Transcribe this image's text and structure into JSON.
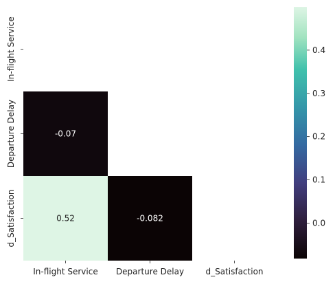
{
  "chart_data": {
    "type": "heatmap",
    "title": "",
    "xlabel": "",
    "ylabel": "",
    "mask": "upper-triangle-including-diagonal",
    "row_labels": [
      "In-flight Service",
      "Departure Delay",
      "d_Satisfaction"
    ],
    "col_labels": [
      "In-flight Service",
      "Departure Delay",
      "d_Satisfaction"
    ],
    "cells": [
      {
        "row": 1,
        "col": 0,
        "value": -0.07,
        "label": "-0.07",
        "text_color": "#ffffff"
      },
      {
        "row": 2,
        "col": 0,
        "value": 0.52,
        "label": "0.52",
        "text_color": "#222222"
      },
      {
        "row": 2,
        "col": 1,
        "value": -0.082,
        "label": "-0.082",
        "text_color": "#ffffff"
      }
    ],
    "colormap": "mako",
    "colorbar": {
      "vmin": -0.082,
      "vmax": 0.5,
      "ticks": [
        0.0,
        0.1,
        0.2,
        0.3,
        0.4
      ],
      "tick_labels": [
        "0.0",
        "0.1",
        "0.2",
        "0.3",
        "0.4"
      ]
    }
  }
}
